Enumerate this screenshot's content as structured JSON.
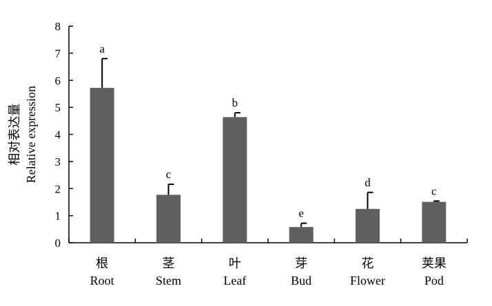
{
  "chart_data": {
    "type": "bar",
    "ylabel": [
      "相对表达量",
      "Relative expression"
    ],
    "xlabel": "",
    "ylim": [
      0,
      8
    ],
    "yticks": [
      0,
      1,
      2,
      3,
      4,
      5,
      6,
      7,
      8
    ],
    "grid": false,
    "categories": [
      {
        "zh": "根",
        "en": "Root"
      },
      {
        "zh": "茎",
        "en": "Stem"
      },
      {
        "zh": "叶",
        "en": "Leaf"
      },
      {
        "zh": "芽",
        "en": "Bud"
      },
      {
        "zh": "花",
        "en": "Flower"
      },
      {
        "zh": "荚果",
        "en": "Pod"
      }
    ],
    "values": [
      5.72,
      1.77,
      4.64,
      0.58,
      1.25,
      1.51
    ],
    "errors": [
      1.08,
      0.39,
      0.16,
      0.14,
      0.61,
      0.03
    ],
    "significance": [
      "a",
      "c",
      "b",
      "e",
      "d",
      "c"
    ],
    "bar_color": "#5f5f5f"
  }
}
